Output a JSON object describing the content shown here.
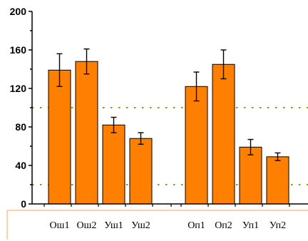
{
  "chart_data": {
    "type": "bar",
    "title": "",
    "xlabel": "",
    "ylabel": "",
    "ylim": [
      0,
      200
    ],
    "yticks": [
      "0",
      "40",
      "80",
      "120",
      "160",
      "200"
    ],
    "grid": false,
    "groups": [
      {
        "categories": [
          "Ош1",
          "Ош2",
          "Уш1",
          "Уш2"
        ],
        "values": [
          139,
          148,
          82,
          68
        ],
        "errors": [
          17,
          13,
          8,
          6
        ]
      },
      {
        "categories": [
          "Оп1",
          "Оп2",
          "Уп1",
          "Уп2"
        ],
        "values": [
          122,
          145,
          59,
          49
        ],
        "errors": [
          15,
          15,
          8,
          4
        ]
      }
    ],
    "reference_lines": [
      100,
      20
    ],
    "colors": {
      "bar": "#ff7f00",
      "bar_edge": "#000000",
      "reference_line": "#8c9a1a",
      "bottom_box": "#f4a460"
    }
  }
}
